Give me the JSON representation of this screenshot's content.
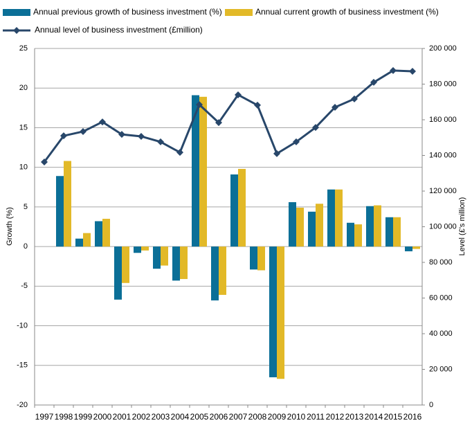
{
  "chart_data": {
    "type": "bar",
    "categories": [
      "1997",
      "1998",
      "1999",
      "2000",
      "2001",
      "2002",
      "2003",
      "2004",
      "2005",
      "2006",
      "2007",
      "2008",
      "2009",
      "2010",
      "2011",
      "2012",
      "2013",
      "2014",
      "2015",
      "2016"
    ],
    "series": [
      {
        "name": "Annual previous growth of business investment (%)",
        "type": "bar",
        "color": "#0b6f97",
        "values": [
          null,
          8.9,
          1.0,
          3.2,
          -6.7,
          -0.8,
          -2.8,
          -4.3,
          19.1,
          -6.8,
          9.1,
          -2.9,
          -16.5,
          5.6,
          4.4,
          7.2,
          3.0,
          5.1,
          3.7,
          -0.6
        ]
      },
      {
        "name": "Annual current growth of business investment (%)",
        "type": "bar",
        "color": "#e2b928",
        "values": [
          null,
          10.8,
          1.7,
          3.5,
          -4.6,
          -0.5,
          -2.4,
          -4.1,
          18.9,
          -6.1,
          9.8,
          -3.0,
          -16.7,
          4.9,
          5.4,
          7.2,
          2.8,
          5.2,
          3.7,
          -0.3
        ]
      },
      {
        "name": "Annual level of business investment (£million)",
        "type": "line",
        "axis": "y2",
        "color": "#28476a",
        "values": [
          136300,
          151000,
          153400,
          158800,
          151800,
          150700,
          147600,
          141700,
          168500,
          158400,
          174000,
          168200,
          141000,
          147600,
          155700,
          167000,
          171700,
          181000,
          187600,
          187200
        ]
      }
    ],
    "y_label": "Growth (%)",
    "y2_label": "Level (£'s million)",
    "ylim": [
      -20,
      25
    ],
    "yticks": [
      -20,
      -15,
      -10,
      -5,
      0,
      5,
      10,
      15,
      20,
      25
    ],
    "y2lim": [
      0,
      200000
    ],
    "y2ticks": [
      0,
      {
        "value": 20000,
        "label": "20 000"
      },
      {
        "value": 40000,
        "label": "40 000"
      },
      {
        "value": 60000,
        "label": "60 000"
      },
      {
        "value": 80000,
        "label": "80 000"
      },
      {
        "value": 100000,
        "label": "100 000"
      },
      {
        "value": 120000,
        "label": "120 000"
      },
      {
        "value": 140000,
        "label": "140 000"
      },
      {
        "value": 160000,
        "label": "160 000"
      },
      {
        "value": 180000,
        "label": "180 000"
      },
      {
        "value": 200000,
        "label": "200 000"
      }
    ],
    "grid": true
  }
}
